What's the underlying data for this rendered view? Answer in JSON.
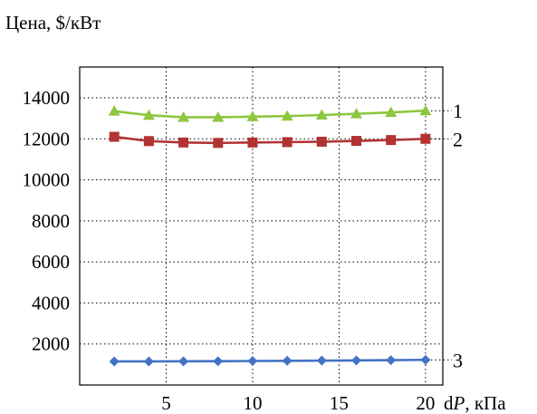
{
  "chart_data": {
    "type": "line",
    "ylabel": "Цена, $/кВт",
    "xlabel_prefix": "d",
    "xlabel_var": "P",
    "xlabel_suffix": ", кПа",
    "xlim": [
      0,
      21
    ],
    "ylim": [
      0,
      15500
    ],
    "x_ticks": [
      5,
      10,
      15,
      20
    ],
    "y_ticks": [
      2000,
      4000,
      6000,
      8000,
      10000,
      12000,
      14000
    ],
    "grid": true,
    "series": [
      {
        "name": "1",
        "color": "#8dc63f",
        "marker": "triangle",
        "x": [
          2,
          4,
          6,
          8,
          10,
          12,
          14,
          16,
          18,
          20
        ],
        "values": [
          13350,
          13150,
          13050,
          13050,
          13080,
          13110,
          13160,
          13220,
          13290,
          13370
        ]
      },
      {
        "name": "2",
        "color": "#b23333",
        "marker": "square",
        "x": [
          2,
          4,
          6,
          8,
          10,
          12,
          14,
          16,
          18,
          20
        ],
        "values": [
          12100,
          11890,
          11820,
          11800,
          11820,
          11840,
          11860,
          11900,
          11940,
          12000
        ]
      },
      {
        "name": "3",
        "color": "#4472c4",
        "marker": "diamond",
        "x": [
          2,
          4,
          6,
          8,
          10,
          12,
          14,
          16,
          18,
          20
        ],
        "values": [
          1150,
          1150,
          1155,
          1160,
          1170,
          1180,
          1190,
          1200,
          1210,
          1225
        ]
      }
    ]
  }
}
